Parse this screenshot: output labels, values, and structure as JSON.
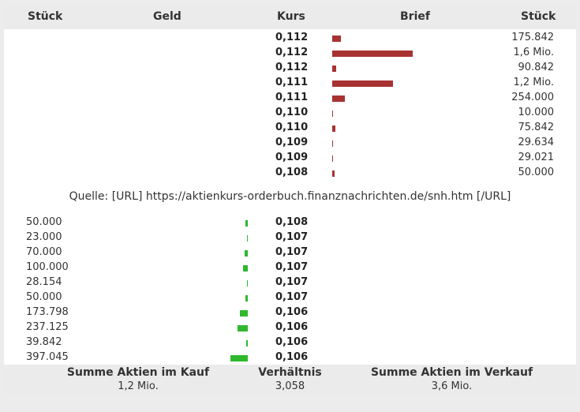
{
  "header": {
    "stueck_left": "Stück",
    "geld": "Geld",
    "kurs": "Kurs",
    "brief": "Brief",
    "stueck_right": "Stück"
  },
  "ask_rows": [
    {
      "kurs": "0,112",
      "stueck": "175.842",
      "level": 0.03
    },
    {
      "kurs": "0,112",
      "stueck": "1,6 Mio.",
      "level": 0.29
    },
    {
      "kurs": "0,112",
      "stueck": "90.842",
      "level": 0.015
    },
    {
      "kurs": "0,111",
      "stueck": "1,2 Mio.",
      "level": 0.22
    },
    {
      "kurs": "0,111",
      "stueck": "254.000",
      "level": 0.045
    },
    {
      "kurs": "0,110",
      "stueck": "10.000",
      "level": 0.0
    },
    {
      "kurs": "0,110",
      "stueck": "75.842",
      "level": 0.012
    },
    {
      "kurs": "0,109",
      "stueck": "29.634",
      "level": 0.004
    },
    {
      "kurs": "0,109",
      "stueck": "29.021",
      "level": 0.004
    },
    {
      "kurs": "0,108",
      "stueck": "50.000",
      "level": 0.008
    }
  ],
  "source_text": "Quelle: [URL] https://aktienkurs-orderbuch.finanznachrichten.de/snh.htm [/URL]",
  "bid_rows": [
    {
      "stueck": "50.000",
      "kurs": "0,108",
      "level": 0.008
    },
    {
      "stueck": "23.000",
      "kurs": "0,107",
      "level": 0.004
    },
    {
      "stueck": "70.000",
      "kurs": "0,107",
      "level": 0.011
    },
    {
      "stueck": "100.000",
      "kurs": "0,107",
      "level": 0.017
    },
    {
      "stueck": "28.154",
      "kurs": "0,107",
      "level": 0.004
    },
    {
      "stueck": "50.000",
      "kurs": "0,107",
      "level": 0.008
    },
    {
      "stueck": "173.798",
      "kurs": "0,106",
      "level": 0.028
    },
    {
      "stueck": "237.125",
      "kurs": "0,106",
      "level": 0.038
    },
    {
      "stueck": "39.842",
      "kurs": "0,106",
      "level": 0.007
    },
    {
      "stueck": "397.045",
      "kurs": "0,106",
      "level": 0.064
    }
  ],
  "footer": {
    "kauf_label": "Summe Aktien im Kauf",
    "kauf_value": "1,2 Mio.",
    "verhaeltnis_label": "Verhältnis",
    "verhaeltnis_value": "3,058",
    "verkauf_label": "Summe Aktien im Verkauf",
    "verkauf_value": "3,6 Mio."
  },
  "colors": {
    "ask_bar": "#a83232",
    "bid_bar": "#2eb82e"
  }
}
